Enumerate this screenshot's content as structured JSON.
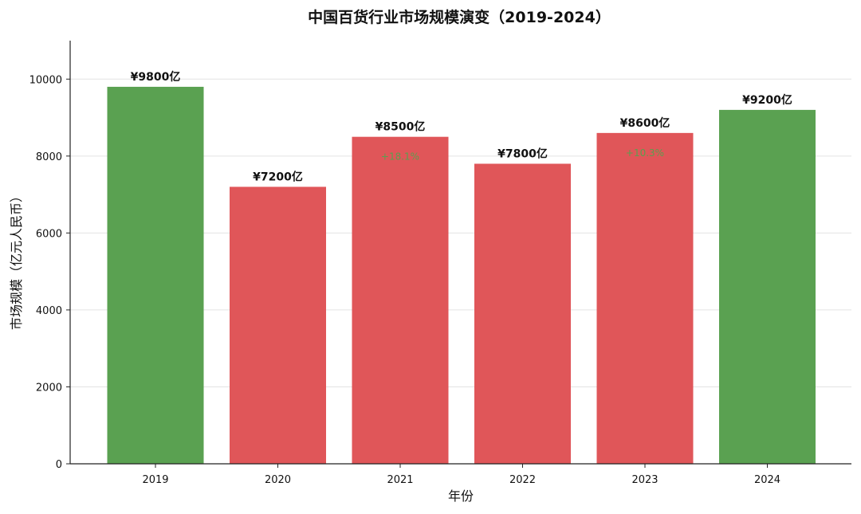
{
  "chart_data": {
    "type": "bar",
    "title": "中国百货行业市场规模演变（2019-2024）",
    "xlabel": "年份",
    "ylabel": "市场规模（亿元人民币）",
    "categories": [
      "2019",
      "2020",
      "2021",
      "2022",
      "2023",
      "2024"
    ],
    "values": [
      9800,
      7200,
      8500,
      7800,
      8600,
      9200
    ],
    "value_labels": [
      "¥9800亿",
      "¥7200亿",
      "¥8500亿",
      "¥7800亿",
      "¥8600亿",
      "¥9200亿"
    ],
    "bar_colors": [
      "#5aa151",
      "#e05659",
      "#e05659",
      "#e05659",
      "#e05659",
      "#5aa151"
    ],
    "annotations": [
      {
        "category": "2021",
        "text": "+18.1%"
      },
      {
        "category": "2023",
        "text": "+10.3%"
      }
    ],
    "ylim": [
      0,
      11000
    ],
    "yticks": [
      0,
      2000,
      4000,
      6000,
      8000,
      10000
    ],
    "grid": true,
    "legend": "none",
    "annotation_color": "#5a9f4f"
  }
}
